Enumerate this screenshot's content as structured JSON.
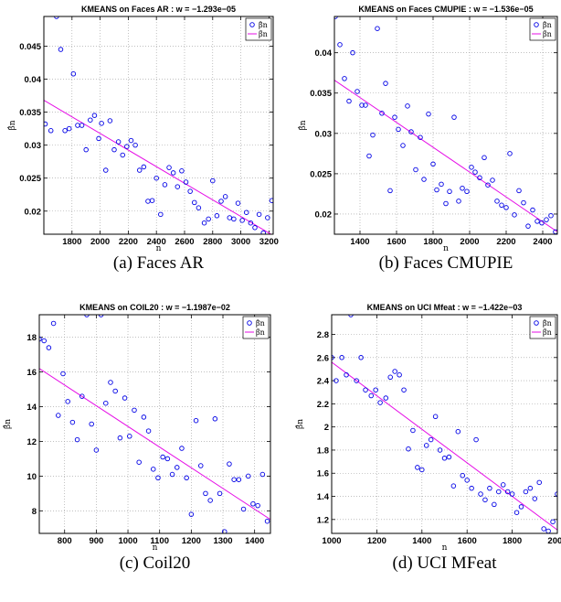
{
  "chart_data": [
    {
      "type": "scatter",
      "title": "KMEANS on Faces AR : w = −1.293e−05",
      "caption": "(a)  Faces AR",
      "xlabel": "n",
      "ylabel": "β̂n",
      "xlim": [
        1600,
        3230
      ],
      "ylim": [
        0.0165,
        0.0495
      ],
      "xticks": [
        1800,
        2000,
        2200,
        2400,
        2600,
        2800,
        3000,
        3200
      ],
      "yticks": [
        0.02,
        0.025,
        0.03,
        0.035,
        0.04,
        0.045
      ],
      "ytick_labels": [
        "0.02",
        "0.025",
        "0.03",
        "0.035",
        "0.04",
        "0.045"
      ],
      "grid": true,
      "legend_location": "top-right",
      "series": [
        {
          "name": "β̂n",
          "kind": "scatter",
          "x": [
            1610,
            1650,
            1690,
            1720,
            1750,
            1780,
            1810,
            1840,
            1870,
            1900,
            1930,
            1960,
            1990,
            2010,
            2040,
            2070,
            2100,
            2130,
            2160,
            2190,
            2220,
            2250,
            2280,
            2310,
            2340,
            2370,
            2400,
            2430,
            2460,
            2490,
            2520,
            2550,
            2580,
            2610,
            2640,
            2670,
            2700,
            2740,
            2770,
            2800,
            2830,
            2860,
            2890,
            2920,
            2950,
            2980,
            3010,
            3040,
            3070,
            3100,
            3130,
            3160,
            3190,
            3220
          ],
          "y": [
            0.0332,
            0.0322,
            0.0495,
            0.0445,
            0.0322,
            0.0325,
            0.0408,
            0.033,
            0.033,
            0.0293,
            0.0338,
            0.0345,
            0.031,
            0.0333,
            0.0262,
            0.0337,
            0.0293,
            0.0305,
            0.0285,
            0.0298,
            0.0307,
            0.03,
            0.0262,
            0.0267,
            0.0215,
            0.0216,
            0.025,
            0.0195,
            0.024,
            0.0266,
            0.0258,
            0.0237,
            0.0261,
            0.0244,
            0.023,
            0.0213,
            0.0205,
            0.0182,
            0.0188,
            0.0246,
            0.0193,
            0.0215,
            0.0222,
            0.019,
            0.0188,
            0.0212,
            0.0186,
            0.0198,
            0.0182,
            0.0175,
            0.0195,
            0.0167,
            0.019,
            0.0216
          ]
        },
        {
          "name": "β̄n",
          "kind": "line",
          "x": [
            1600,
            3230
          ],
          "y": [
            0.0368,
            0.0163
          ]
        }
      ]
    },
    {
      "type": "scatter",
      "title": "KMEANS on Faces CMUPIE : w = −1.536e−05",
      "caption": "(b)  Faces CMUPIE",
      "xlabel": "n",
      "ylabel": "β̂n",
      "xlim": [
        1260,
        2480
      ],
      "ylim": [
        0.0175,
        0.0445
      ],
      "xticks": [
        1400,
        1600,
        1800,
        2000,
        2200,
        2400
      ],
      "yticks": [
        0.02,
        0.025,
        0.03,
        0.035,
        0.04
      ],
      "ytick_labels": [
        "0.02",
        "0.025",
        "0.03",
        "0.035",
        "0.04"
      ],
      "grid": true,
      "legend_location": "top-right",
      "series": [
        {
          "name": "β̂n",
          "kind": "scatter",
          "x": [
            1265,
            1290,
            1315,
            1340,
            1360,
            1385,
            1410,
            1430,
            1450,
            1470,
            1495,
            1520,
            1540,
            1565,
            1590,
            1610,
            1635,
            1660,
            1680,
            1705,
            1730,
            1750,
            1775,
            1800,
            1820,
            1845,
            1870,
            1890,
            1915,
            1940,
            1960,
            1985,
            2010,
            2030,
            2055,
            2080,
            2100,
            2125,
            2150,
            2175,
            2200,
            2220,
            2245,
            2270,
            2295,
            2320,
            2345,
            2370,
            2395,
            2420,
            2445,
            2470
          ],
          "y": [
            0.0445,
            0.041,
            0.0368,
            0.034,
            0.04,
            0.0352,
            0.0335,
            0.0335,
            0.0272,
            0.0298,
            0.043,
            0.0325,
            0.0362,
            0.0229,
            0.032,
            0.0305,
            0.0285,
            0.0334,
            0.0302,
            0.0255,
            0.0295,
            0.0243,
            0.0324,
            0.0262,
            0.023,
            0.0237,
            0.0213,
            0.0228,
            0.032,
            0.0216,
            0.0232,
            0.0228,
            0.0258,
            0.0252,
            0.0245,
            0.027,
            0.0236,
            0.0242,
            0.0216,
            0.0211,
            0.0208,
            0.0275,
            0.0199,
            0.0229,
            0.0214,
            0.0185,
            0.0205,
            0.0191,
            0.0189,
            0.0193,
            0.0198,
            0.0178
          ]
        },
        {
          "name": "β̄n",
          "kind": "line",
          "x": [
            1260,
            2480
          ],
          "y": [
            0.0366,
            0.0178
          ]
        }
      ]
    },
    {
      "type": "scatter",
      "title": "KMEANS on COIL20 : w = −1.1987e−02",
      "caption": "(c)  Coil20",
      "xlabel": "n",
      "ylabel": "β̂n",
      "xlim": [
        720,
        1450
      ],
      "ylim": [
        6.7,
        19.3
      ],
      "xticks": [
        800,
        900,
        1000,
        1100,
        1200,
        1300,
        1400
      ],
      "yticks": [
        8,
        10,
        12,
        14,
        16,
        18
      ],
      "ytick_labels": [
        "8",
        "10",
        "12",
        "14",
        "16",
        "18"
      ],
      "grid": true,
      "legend_location": "top-right",
      "series": [
        {
          "name": "β̂n",
          "kind": "scatter",
          "x": [
            720,
            735,
            750,
            765,
            780,
            795,
            810,
            825,
            840,
            855,
            870,
            885,
            900,
            915,
            930,
            945,
            960,
            975,
            990,
            1005,
            1020,
            1035,
            1050,
            1065,
            1080,
            1095,
            1110,
            1125,
            1140,
            1155,
            1170,
            1185,
            1200,
            1215,
            1230,
            1245,
            1260,
            1275,
            1290,
            1305,
            1320,
            1335,
            1350,
            1365,
            1380,
            1395,
            1410,
            1425,
            1440
          ],
          "y": [
            17.9,
            17.8,
            17.4,
            18.8,
            13.5,
            15.9,
            14.3,
            13.1,
            12.1,
            14.6,
            19.3,
            13,
            11.5,
            19.3,
            14.2,
            15.4,
            14.9,
            12.2,
            14.5,
            12.3,
            13.8,
            10.8,
            13.4,
            12.6,
            10.4,
            9.9,
            11.1,
            11,
            10.1,
            10.5,
            11.6,
            9.9,
            7.8,
            13.2,
            10.6,
            9,
            8.6,
            13.3,
            9,
            6.8,
            10.7,
            9.8,
            9.8,
            8.1,
            10,
            8.4,
            8.3,
            10.1,
            7.4
          ]
        },
        {
          "name": "β̄n",
          "kind": "line",
          "x": [
            720,
            1450
          ],
          "y": [
            16.2,
            7.5
          ]
        }
      ]
    },
    {
      "type": "scatter",
      "title": "KMEANS on UCI Mfeat : w = −1.422e−03",
      "caption": "(d)  UCI MFeat",
      "xlabel": "n",
      "ylabel": "β̂n",
      "xlim": [
        1000,
        2000
      ],
      "ylim": [
        1.08,
        2.97
      ],
      "xticks": [
        1000,
        1200,
        1400,
        1600,
        1800,
        2000
      ],
      "yticks": [
        1.2,
        1.4,
        1.6,
        1.8,
        2,
        2.2,
        2.4,
        2.6,
        2.8
      ],
      "ytick_labels": [
        "1.2",
        "1.4",
        "1.6",
        "1.8",
        "2",
        "2.2",
        "2.4",
        "2.6",
        "2.8"
      ],
      "grid": true,
      "legend_location": "top-right",
      "series": [
        {
          "name": "β̂n",
          "kind": "scatter",
          "x": [
            1000,
            1020,
            1045,
            1065,
            1085,
            1110,
            1130,
            1150,
            1175,
            1195,
            1215,
            1240,
            1260,
            1280,
            1300,
            1320,
            1340,
            1360,
            1380,
            1400,
            1420,
            1440,
            1460,
            1480,
            1500,
            1520,
            1540,
            1560,
            1580,
            1600,
            1620,
            1640,
            1660,
            1680,
            1700,
            1720,
            1740,
            1760,
            1780,
            1800,
            1820,
            1840,
            1860,
            1880,
            1900,
            1920,
            1940,
            1960,
            1980,
            2000
          ],
          "y": [
            2.6,
            2.4,
            2.6,
            2.45,
            2.97,
            2.4,
            2.6,
            2.32,
            2.27,
            2.32,
            2.21,
            2.25,
            2.43,
            2.48,
            2.45,
            2.32,
            1.81,
            1.97,
            1.65,
            1.63,
            1.84,
            1.89,
            2.09,
            1.8,
            1.73,
            1.74,
            1.49,
            1.96,
            1.58,
            1.54,
            1.47,
            1.89,
            1.42,
            1.37,
            1.47,
            1.33,
            1.44,
            1.5,
            1.44,
            1.42,
            1.26,
            1.31,
            1.44,
            1.47,
            1.38,
            1.52,
            1.12,
            1.1,
            1.18,
            1.42
          ]
        },
        {
          "name": "β̄n",
          "kind": "line",
          "x": [
            1000,
            2000
          ],
          "y": [
            2.56,
            1.11
          ]
        }
      ]
    }
  ]
}
